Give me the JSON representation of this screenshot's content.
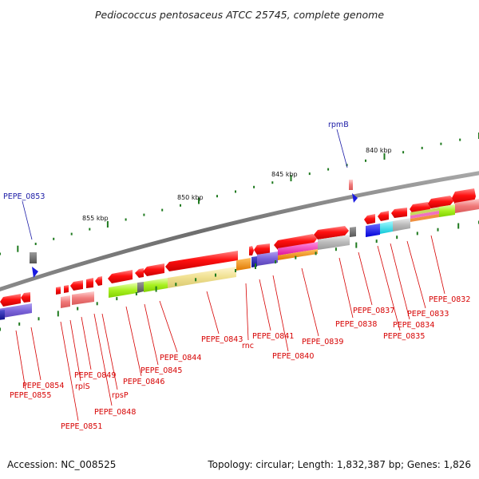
{
  "title": "Pediococcus pentosaceus ATCC 25745, complete genome",
  "footer": {
    "accession": "Accession: NC_008525",
    "summary": "Topology: circular; Length: 1,832,387 bp; Genes: 1,826"
  },
  "colors": {
    "backbone": "#7f7f7f",
    "tick": "#1f7a1f",
    "label_red": "#d60000",
    "label_blue": "#1a1aa6",
    "gene_red": "#ff1a1a"
  },
  "scale_labels": [
    "840 kbp",
    "845 kbp",
    "850 kbp",
    "855 kbp"
  ],
  "gene_labels": [
    {
      "text": "PEPE_0853",
      "color": "blue"
    },
    {
      "text": "rpmB",
      "color": "blue"
    },
    {
      "text": "PEPE_0832",
      "color": "red"
    },
    {
      "text": "PEPE_0833",
      "color": "red"
    },
    {
      "text": "PEPE_0834",
      "color": "red"
    },
    {
      "text": "PEPE_0835",
      "color": "red"
    },
    {
      "text": "PEPE_0837",
      "color": "red"
    },
    {
      "text": "PEPE_0838",
      "color": "red"
    },
    {
      "text": "PEPE_0839",
      "color": "red"
    },
    {
      "text": "PEPE_0840",
      "color": "red"
    },
    {
      "text": "PEPE_0841",
      "color": "red"
    },
    {
      "text": "rnc",
      "color": "red"
    },
    {
      "text": "PEPE_0843",
      "color": "red"
    },
    {
      "text": "PEPE_0844",
      "color": "red"
    },
    {
      "text": "PEPE_0845",
      "color": "red"
    },
    {
      "text": "PEPE_0846",
      "color": "red"
    },
    {
      "text": "rpsP",
      "color": "red"
    },
    {
      "text": "PEPE_0848",
      "color": "red"
    },
    {
      "text": "PEPE_0849",
      "color": "red"
    },
    {
      "text": "rplS",
      "color": "red"
    },
    {
      "text": "PEPE_0851",
      "color": "red"
    },
    {
      "text": "PEPE_0854",
      "color": "red"
    },
    {
      "text": "PEPE_0855",
      "color": "red"
    }
  ]
}
